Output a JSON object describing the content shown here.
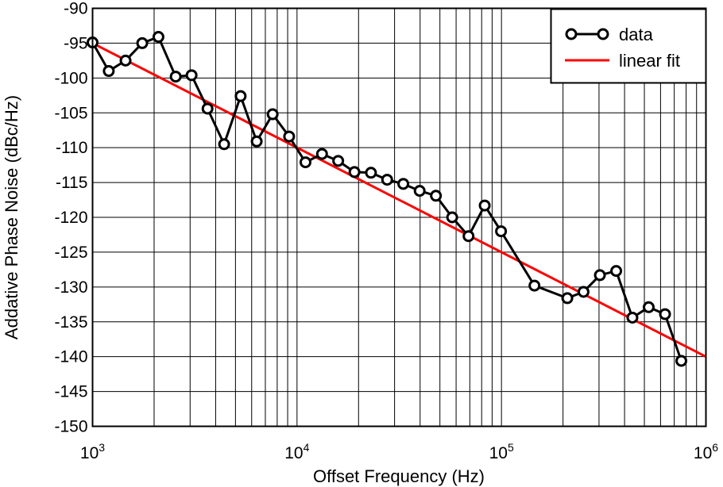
{
  "chart_data": {
    "type": "line",
    "xscale": "log",
    "xlim": [
      1000,
      1000000
    ],
    "ylim": [
      -150,
      -90
    ],
    "yticks": [
      -90,
      -95,
      -100,
      -105,
      -110,
      -115,
      -120,
      -125,
      -130,
      -135,
      -140,
      -145,
      -150
    ],
    "xticks": [
      {
        "value": 1000,
        "base": "10",
        "exp": "3"
      },
      {
        "value": 10000,
        "base": "10",
        "exp": "4"
      },
      {
        "value": 100000,
        "base": "10",
        "exp": "5"
      },
      {
        "value": 1000000,
        "base": "10",
        "exp": "6"
      }
    ],
    "xlabel": "Offset Frequency (Hz)",
    "ylabel": "Addative Phase Noise (dBc/Hz)",
    "grid": true,
    "legend_position": "top-right",
    "series": [
      {
        "name": "data",
        "color": "#000000",
        "marker": "circle",
        "x": [
          1000,
          1200,
          1450,
          1750,
          2100,
          2550,
          3050,
          3650,
          4400,
          5300,
          6350,
          7600,
          9150,
          11000,
          13250,
          15900,
          19100,
          23000,
          27600,
          33100,
          39800,
          47800,
          57400,
          69000,
          82800,
          99500,
          145000,
          210000,
          252000,
          303000,
          364000,
          437000,
          525000,
          631000,
          758000
        ],
        "y": [
          -94.9,
          -99.0,
          -97.5,
          -95.0,
          -94.1,
          -99.8,
          -99.6,
          -104.4,
          -109.5,
          -102.6,
          -109.1,
          -105.2,
          -108.4,
          -112.1,
          -110.9,
          -111.9,
          -113.5,
          -113.6,
          -114.6,
          -115.2,
          -116.2,
          -116.9,
          -120.0,
          -122.7,
          -118.3,
          -122.0,
          -129.8,
          -131.6,
          -130.7,
          -128.3,
          -127.7,
          -134.4,
          -132.9,
          -133.9,
          -140.6
        ]
      },
      {
        "name": "linear fit",
        "color": "#ff0000",
        "x": [
          1000,
          1000000
        ],
        "y": [
          -95.0,
          -140.0
        ]
      }
    ]
  }
}
